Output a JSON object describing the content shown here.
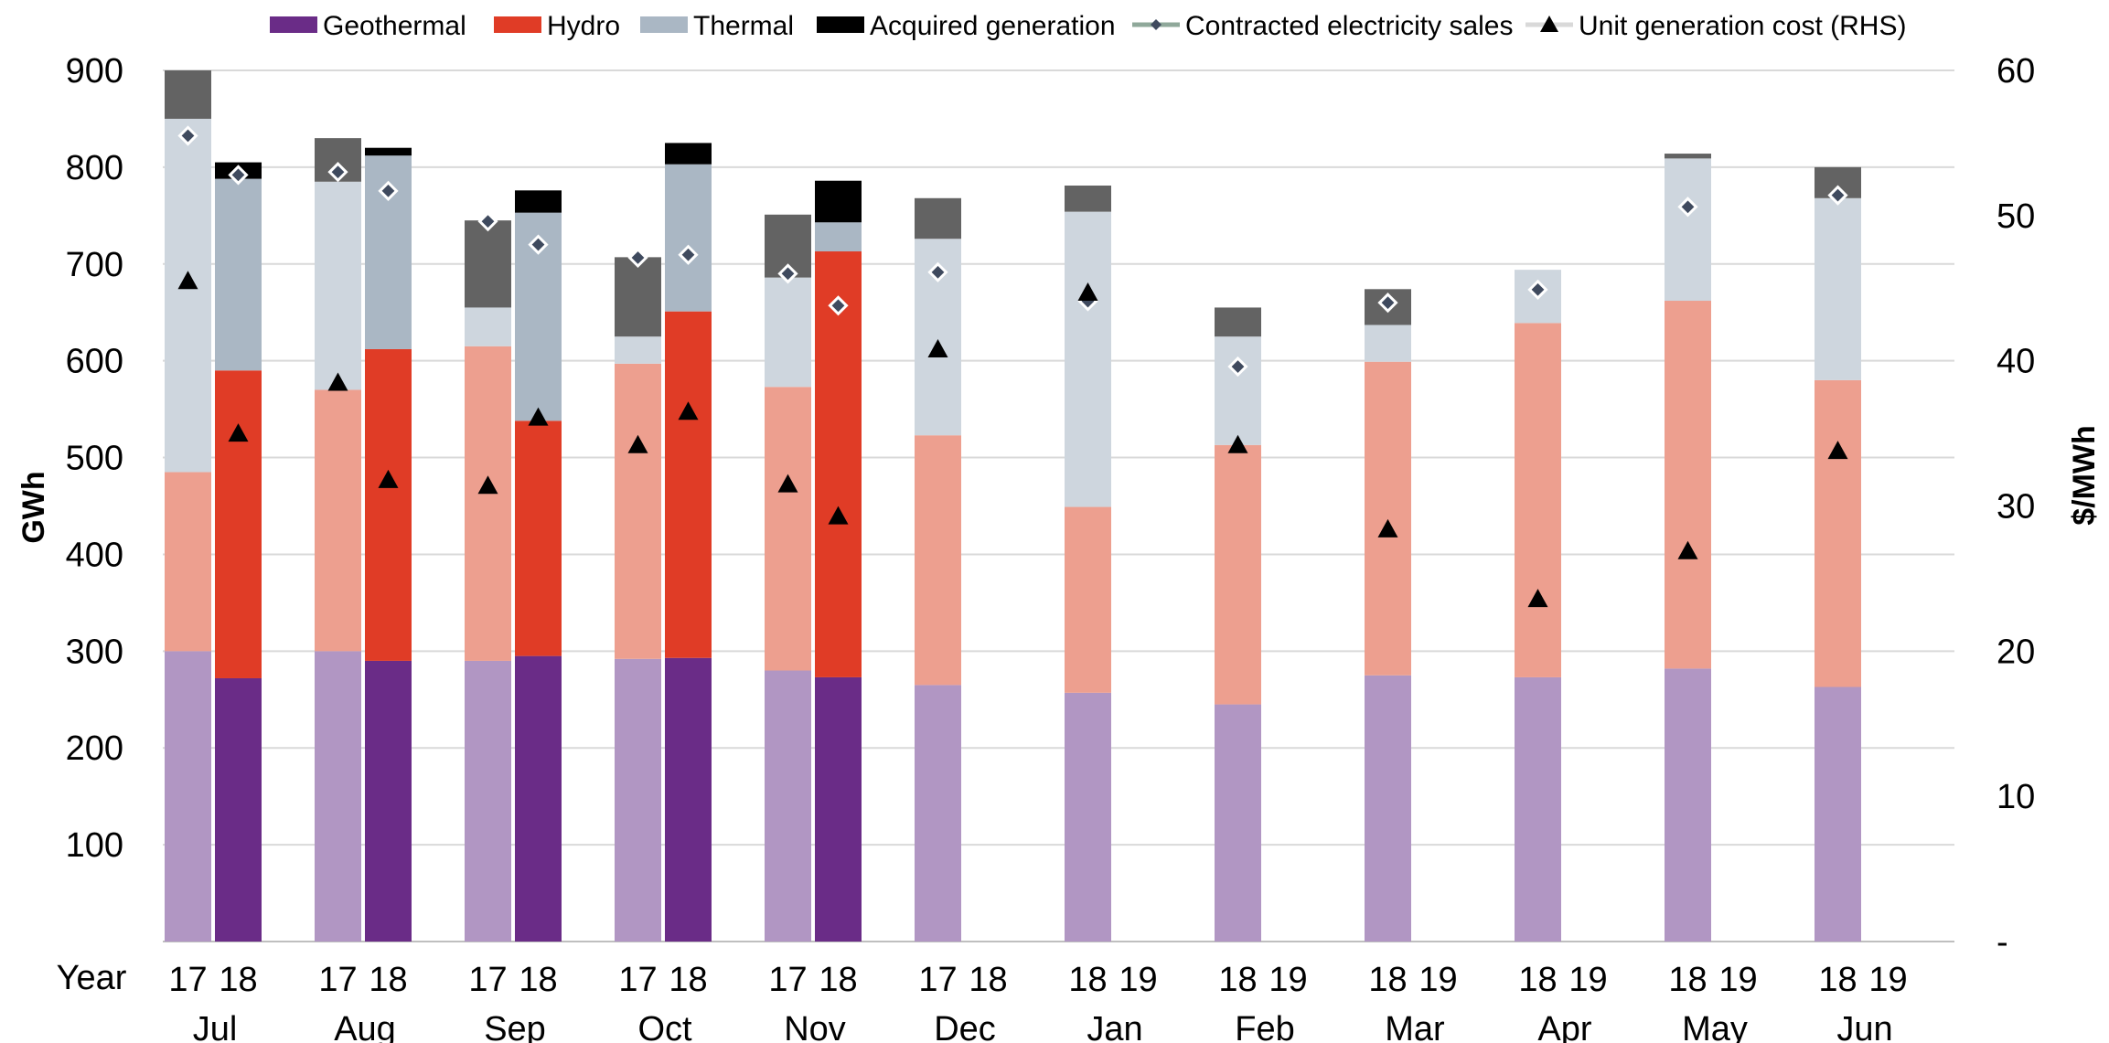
{
  "chart_data": {
    "type": "bar",
    "stacked": true,
    "grouped_by_year": true,
    "x_axis_prefix": "Year",
    "months": [
      "Jul",
      "Aug",
      "Sep",
      "Oct",
      "Nov",
      "Dec",
      "Jan",
      "Feb",
      "Mar",
      "Apr",
      "May",
      "Jun"
    ],
    "ylabel": "GWh",
    "y2label": "$/MWh",
    "ylim": [
      0,
      900
    ],
    "y2lim": [
      0,
      60
    ],
    "yticks": [
      "100",
      "200",
      "300",
      "400",
      "500",
      "600",
      "700",
      "800",
      "900"
    ],
    "y2ticks": [
      "-",
      "10",
      "20",
      "30",
      "40",
      "50",
      "60"
    ],
    "gridlines": true,
    "legend_position": "top",
    "legend": [
      "Geothermal",
      "Hydro",
      "Thermal",
      "Acquired generation",
      "Contracted electricity sales",
      "Unit generation cost (RHS)"
    ],
    "colors": {
      "geothermal_current": "#6a2c87",
      "geothermal_prior": "#b196c3",
      "hydro_current": "#e03c26",
      "hydro_prior": "#ed9f8f",
      "thermal_current": "#aab7c4",
      "thermal_prior": "#ced6de",
      "acquired_current": "#000000",
      "acquired_prior": "#636363",
      "contracted_marker": "#3f4a5e",
      "contracted_line_legend": "#8fa89a",
      "cost_marker": "#000000",
      "gridline": "#d9d9d9"
    },
    "bars": [
      {
        "month": "Jul",
        "year": "17",
        "period": "prior",
        "geothermal": 300,
        "hydro": 185,
        "thermal": 365,
        "acquired": 50,
        "contracted": 55.5,
        "cost": 45.5
      },
      {
        "month": "Jul",
        "year": "18",
        "period": "current",
        "geothermal": 272,
        "hydro": 318,
        "thermal": 198,
        "acquired": 17,
        "contracted": 52.8,
        "cost": 35.0
      },
      {
        "month": "Aug",
        "year": "17",
        "period": "prior",
        "geothermal": 300,
        "hydro": 270,
        "thermal": 215,
        "acquired": 45,
        "contracted": 53.0,
        "cost": 38.5
      },
      {
        "month": "Aug",
        "year": "18",
        "period": "current",
        "geothermal": 290,
        "hydro": 322,
        "thermal": 200,
        "acquired": 8,
        "contracted": 51.7,
        "cost": 31.8
      },
      {
        "month": "Sep",
        "year": "17",
        "period": "prior",
        "geothermal": 290,
        "hydro": 325,
        "thermal": 40,
        "acquired": 90,
        "contracted": 49.6,
        "cost": 31.4
      },
      {
        "month": "Sep",
        "year": "18",
        "period": "current",
        "geothermal": 295,
        "hydro": 243,
        "thermal": 215,
        "acquired": 23,
        "contracted": 48.0,
        "cost": 36.1
      },
      {
        "month": "Oct",
        "year": "17",
        "period": "prior",
        "geothermal": 292,
        "hydro": 305,
        "thermal": 28,
        "acquired": 82,
        "contracted": 47.1,
        "cost": 34.2
      },
      {
        "month": "Oct",
        "year": "18",
        "period": "current",
        "geothermal": 293,
        "hydro": 358,
        "thermal": 152,
        "acquired": 22,
        "contracted": 47.3,
        "cost": 36.5
      },
      {
        "month": "Nov",
        "year": "17",
        "period": "prior",
        "geothermal": 280,
        "hydro": 293,
        "thermal": 113,
        "acquired": 65,
        "contracted": 46.0,
        "cost": 31.5
      },
      {
        "month": "Nov",
        "year": "18",
        "period": "current",
        "geothermal": 273,
        "hydro": 440,
        "thermal": 30,
        "acquired": 43,
        "contracted": 43.8,
        "cost": 29.3
      },
      {
        "month": "Dec",
        "year": "17",
        "period": "prior",
        "geothermal": 265,
        "hydro": 258,
        "thermal": 203,
        "acquired": 42,
        "contracted": 46.1,
        "cost": 40.8
      },
      {
        "month": "Jan",
        "year": "18",
        "period": "prior",
        "geothermal": 257,
        "hydro": 192,
        "thermal": 305,
        "acquired": 27,
        "contracted": 44.1,
        "cost": 44.7
      },
      {
        "month": "Feb",
        "year": "18",
        "period": "prior",
        "geothermal": 245,
        "hydro": 268,
        "thermal": 112,
        "acquired": 30,
        "contracted": 39.6,
        "cost": 34.2
      },
      {
        "month": "Mar",
        "year": "18",
        "period": "prior",
        "geothermal": 275,
        "hydro": 324,
        "thermal": 38,
        "acquired": 37,
        "contracted": 44.0,
        "cost": 28.4
      },
      {
        "month": "Apr",
        "year": "18",
        "period": "prior",
        "geothermal": 273,
        "hydro": 366,
        "thermal": 55,
        "acquired": 0,
        "contracted": 44.9,
        "cost": 23.6
      },
      {
        "month": "May",
        "year": "18",
        "period": "prior",
        "geothermal": 282,
        "hydro": 380,
        "thermal": 147,
        "acquired": 5,
        "contracted": 50.6,
        "cost": 26.9
      },
      {
        "month": "Jun",
        "year": "18",
        "period": "prior",
        "geothermal": 263,
        "hydro": 317,
        "thermal": 188,
        "acquired": 32,
        "contracted": 51.4,
        "cost": 33.8
      }
    ],
    "year_labels": [
      {
        "month": "Jul",
        "labels": [
          "17",
          "18"
        ]
      },
      {
        "month": "Aug",
        "labels": [
          "17",
          "18"
        ]
      },
      {
        "month": "Sep",
        "labels": [
          "17",
          "18"
        ]
      },
      {
        "month": "Oct",
        "labels": [
          "17",
          "18"
        ]
      },
      {
        "month": "Nov",
        "labels": [
          "17",
          "18"
        ]
      },
      {
        "month": "Dec",
        "labels": [
          "17",
          "18"
        ]
      },
      {
        "month": "Jan",
        "labels": [
          "18",
          "19"
        ]
      },
      {
        "month": "Feb",
        "labels": [
          "18",
          "19"
        ]
      },
      {
        "month": "Mar",
        "labels": [
          "18",
          "19"
        ]
      },
      {
        "month": "Apr",
        "labels": [
          "18",
          "19"
        ]
      },
      {
        "month": "May",
        "labels": [
          "18",
          "19"
        ]
      },
      {
        "month": "Jun",
        "labels": [
          "18",
          "19"
        ]
      }
    ]
  }
}
